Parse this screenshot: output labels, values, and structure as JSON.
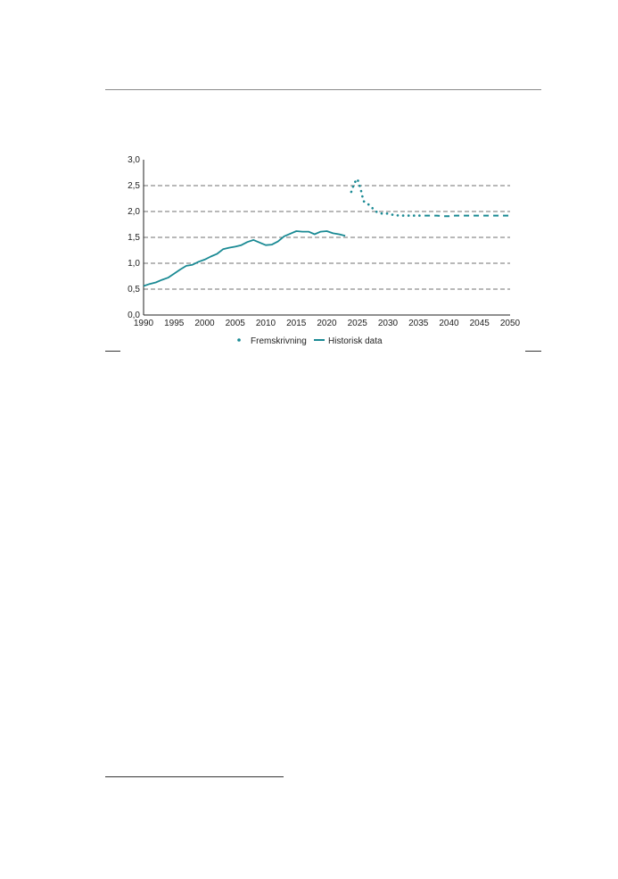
{
  "colors": {
    "series": "#1a8a94",
    "grid": "#444444",
    "axis": "#222222"
  },
  "chart_data": {
    "type": "line",
    "title": "",
    "xlabel": "",
    "ylabel": "",
    "xlim": [
      1990,
      2050
    ],
    "ylim": [
      0,
      3.0
    ],
    "xticks": [
      "1990",
      "1995",
      "2000",
      "2005",
      "2010",
      "2015",
      "2020",
      "2025",
      "2030",
      "2035",
      "2040",
      "2045",
      "2050"
    ],
    "yticks": [
      "0,0",
      "0,5",
      "1,0",
      "1,5",
      "2,0",
      "2,5",
      "3,0"
    ],
    "grid": "horizontal dashed",
    "legend_position": "bottom",
    "series": [
      {
        "name": "Fremskrivning",
        "style": "dotted-then-dashed",
        "points": [
          [
            2024,
            2.38
          ],
          [
            2024.5,
            2.55
          ],
          [
            2025,
            2.63
          ],
          [
            2025.5,
            2.45
          ],
          [
            2026,
            2.2
          ],
          [
            2027,
            2.12
          ],
          [
            2028,
            2.0
          ],
          [
            2029,
            1.96
          ],
          [
            2030,
            1.96
          ],
          [
            2031,
            1.93
          ],
          [
            2032,
            1.92
          ],
          [
            2033,
            1.92
          ],
          [
            2034,
            1.92
          ],
          [
            2035,
            1.92
          ],
          [
            2036,
            1.92
          ],
          [
            2037,
            1.92
          ],
          [
            2038,
            1.92
          ],
          [
            2039,
            1.91
          ],
          [
            2040,
            1.91
          ],
          [
            2041,
            1.92
          ],
          [
            2042,
            1.92
          ],
          [
            2043,
            1.92
          ],
          [
            2044,
            1.92
          ],
          [
            2045,
            1.92
          ],
          [
            2046,
            1.92
          ],
          [
            2047,
            1.92
          ],
          [
            2048,
            1.92
          ],
          [
            2049,
            1.92
          ],
          [
            2050,
            1.92
          ]
        ]
      },
      {
        "name": "Historisk data",
        "style": "solid",
        "points": [
          [
            1990,
            0.56
          ],
          [
            1991,
            0.6
          ],
          [
            1992,
            0.63
          ],
          [
            1993,
            0.68
          ],
          [
            1994,
            0.72
          ],
          [
            1995,
            0.8
          ],
          [
            1996,
            0.88
          ],
          [
            1997,
            0.95
          ],
          [
            1998,
            0.97
          ],
          [
            1999,
            1.03
          ],
          [
            2000,
            1.07
          ],
          [
            2001,
            1.13
          ],
          [
            2002,
            1.18
          ],
          [
            2003,
            1.27
          ],
          [
            2004,
            1.3
          ],
          [
            2005,
            1.32
          ],
          [
            2006,
            1.35
          ],
          [
            2007,
            1.41
          ],
          [
            2008,
            1.45
          ],
          [
            2009,
            1.4
          ],
          [
            2010,
            1.35
          ],
          [
            2011,
            1.36
          ],
          [
            2012,
            1.42
          ],
          [
            2013,
            1.52
          ],
          [
            2014,
            1.57
          ],
          [
            2015,
            1.62
          ],
          [
            2016,
            1.61
          ],
          [
            2017,
            1.61
          ],
          [
            2018,
            1.56
          ],
          [
            2019,
            1.61
          ],
          [
            2020,
            1.62
          ],
          [
            2021,
            1.58
          ],
          [
            2022,
            1.56
          ],
          [
            2023,
            1.53
          ]
        ]
      }
    ]
  }
}
